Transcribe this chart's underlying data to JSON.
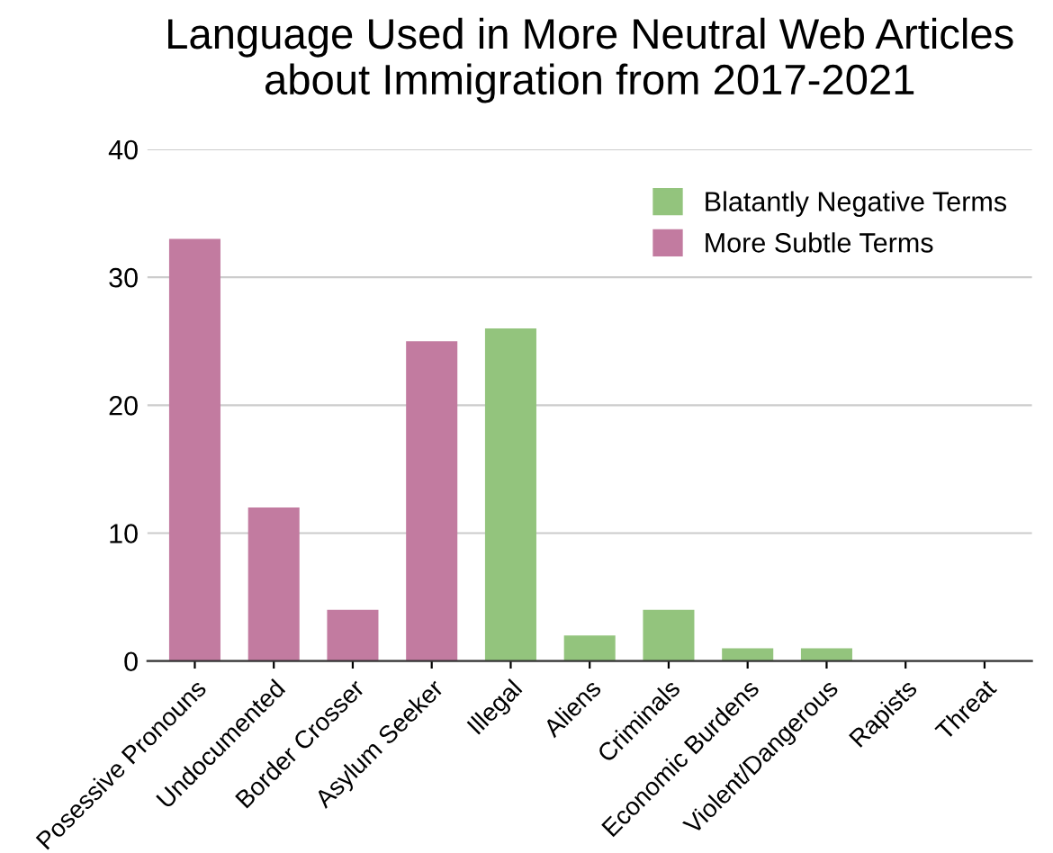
{
  "chart_data": {
    "type": "bar",
    "title": "Language Used in More Neutral Web Articles\nabout Immigration from 2017-2021",
    "categories": [
      "Posessive Pronouns",
      "Undocumented",
      "Border Crosser",
      "Asylum Seeker",
      "Illegal",
      "Aliens",
      "Criminals",
      "Economic Burdens",
      "Violent/Dangerous",
      "Rapists",
      "Threat"
    ],
    "series": [
      {
        "name": "Blatantly Negative Terms",
        "color": "#93c47d",
        "values": [
          null,
          null,
          null,
          null,
          26,
          2,
          4,
          1,
          1,
          0,
          0
        ]
      },
      {
        "name": "More Subtle Terms",
        "color": "#c27ba0",
        "values": [
          33,
          12,
          4,
          25,
          null,
          null,
          null,
          null,
          null,
          null,
          null
        ]
      }
    ],
    "ylim": [
      0,
      40
    ],
    "yticks": [
      0,
      10,
      20,
      30,
      40
    ],
    "grid": "y",
    "legend": "top right"
  }
}
